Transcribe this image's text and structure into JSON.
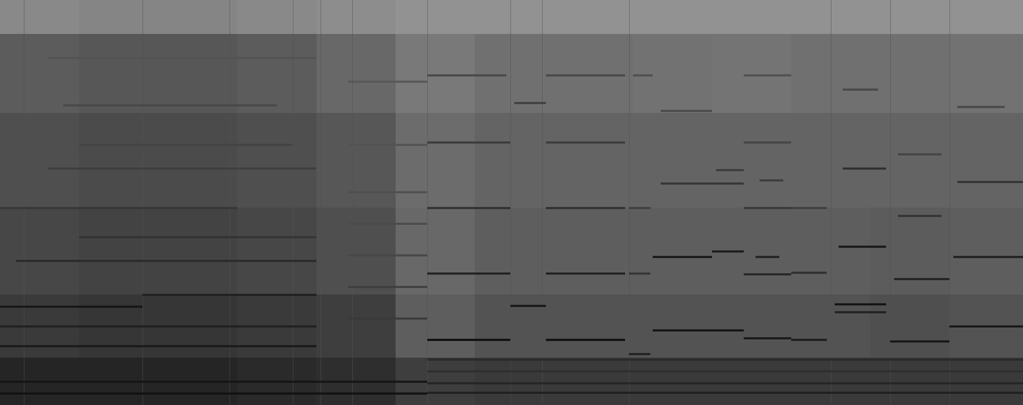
{
  "chart_data": {
    "type": "spectrogram",
    "tick_labels": false,
    "xlim": [
      0,
      1293
    ],
    "ylim": [
      0,
      513
    ],
    "x_edges": [
      0,
      100,
      200,
      300,
      400,
      500,
      600,
      700,
      800,
      900,
      1000,
      1100,
      1200,
      1293
    ],
    "y_edges": [
      0,
      60,
      140,
      250,
      370,
      470,
      513
    ],
    "color_range": [
      0,
      1
    ],
    "cells": [
      [
        0.82,
        0.82,
        0.82,
        0.8,
        0.78,
        0.7,
        0.72,
        0.72,
        0.72,
        0.72,
        0.72,
        0.72,
        0.72
      ],
      [
        0.72,
        0.74,
        0.74,
        0.72,
        0.7,
        0.55,
        0.6,
        0.6,
        0.6,
        0.6,
        0.6,
        0.62,
        0.6
      ],
      [
        0.66,
        0.68,
        0.68,
        0.66,
        0.62,
        0.5,
        0.55,
        0.55,
        0.55,
        0.55,
        0.55,
        0.56,
        0.55
      ],
      [
        0.62,
        0.64,
        0.64,
        0.62,
        0.58,
        0.48,
        0.52,
        0.52,
        0.52,
        0.52,
        0.52,
        0.52,
        0.52
      ],
      [
        0.56,
        0.58,
        0.58,
        0.56,
        0.5,
        0.42,
        0.46,
        0.46,
        0.45,
        0.44,
        0.46,
        0.46,
        0.45
      ],
      [
        0.34,
        0.36,
        0.36,
        0.34,
        0.32,
        0.3,
        0.3,
        0.3,
        0.3,
        0.3,
        0.3,
        0.3,
        0.3
      ]
    ],
    "tracks": [
      {
        "x1": 540,
        "x2": 645,
        "y": 83,
        "v": 0.95
      },
      {
        "x1": 690,
        "x2": 790,
        "y": 83,
        "v": 0.95
      },
      {
        "x1": 540,
        "x2": 645,
        "y": 167,
        "v": 0.85
      },
      {
        "x1": 690,
        "x2": 790,
        "y": 167,
        "v": 0.85
      },
      {
        "x1": 540,
        "x2": 645,
        "y": 250,
        "v": 0.78
      },
      {
        "x1": 690,
        "x2": 790,
        "y": 250,
        "v": 0.78
      },
      {
        "x1": 540,
        "x2": 645,
        "y": 333,
        "v": 0.72
      },
      {
        "x1": 690,
        "x2": 790,
        "y": 333,
        "v": 0.72
      },
      {
        "x1": 540,
        "x2": 640,
        "y": 418,
        "v": 0.66
      },
      {
        "x1": 690,
        "x2": 790,
        "y": 418,
        "v": 0.66
      },
      {
        "x1": 645,
        "x2": 690,
        "y": 126,
        "v": 0.9
      },
      {
        "x1": 650,
        "x2": 690,
        "y": 383,
        "v": 0.7
      },
      {
        "x1": 795,
        "x2": 822,
        "y": 65,
        "v": 0.85
      },
      {
        "x1": 795,
        "x2": 822,
        "y": 167,
        "v": 0.75
      },
      {
        "x1": 795,
        "x2": 822,
        "y": 250,
        "v": 0.7
      },
      {
        "x1": 800,
        "x2": 825,
        "y": 418,
        "v": 0.62
      },
      {
        "x1": 825,
        "x2": 940,
        "y": 95,
        "v": 0.92
      },
      {
        "x1": 825,
        "x2": 900,
        "y": 188,
        "v": 0.9
      },
      {
        "x1": 900,
        "x2": 940,
        "y": 195,
        "v": 0.88
      },
      {
        "x1": 835,
        "x2": 940,
        "y": 281,
        "v": 0.75
      },
      {
        "x1": 835,
        "x2": 900,
        "y": 373,
        "v": 0.65
      },
      {
        "x1": 905,
        "x2": 940,
        "y": 298,
        "v": 0.72
      },
      {
        "x1": 940,
        "x2": 1000,
        "y": 85,
        "v": 0.9
      },
      {
        "x1": 940,
        "x2": 1000,
        "y": 166,
        "v": 0.82
      },
      {
        "x1": 940,
        "x2": 1000,
        "y": 250,
        "v": 0.74
      },
      {
        "x1": 940,
        "x2": 1000,
        "y": 333,
        "v": 0.68
      },
      {
        "x1": 940,
        "x2": 1000,
        "y": 418,
        "v": 0.62
      },
      {
        "x1": 955,
        "x2": 985,
        "y": 188,
        "v": 0.85
      },
      {
        "x1": 960,
        "x2": 990,
        "y": 285,
        "v": 0.72
      },
      {
        "x1": 1000,
        "x2": 1045,
        "y": 83,
        "v": 0.88
      },
      {
        "x1": 1000,
        "x2": 1045,
        "y": 168,
        "v": 0.78
      },
      {
        "x1": 1000,
        "x2": 1045,
        "y": 250,
        "v": 0.7
      },
      {
        "x1": 1055,
        "x2": 1120,
        "y": 128,
        "v": 0.92
      },
      {
        "x1": 1055,
        "x2": 1120,
        "y": 118,
        "v": 0.85
      },
      {
        "x1": 1060,
        "x2": 1120,
        "y": 201,
        "v": 0.9
      },
      {
        "x1": 1065,
        "x2": 1120,
        "y": 300,
        "v": 0.78
      },
      {
        "x1": 1065,
        "x2": 1110,
        "y": 400,
        "v": 0.66
      },
      {
        "x1": 1125,
        "x2": 1200,
        "y": 81,
        "v": 0.9
      },
      {
        "x1": 1130,
        "x2": 1200,
        "y": 160,
        "v": 0.85
      },
      {
        "x1": 1135,
        "x2": 1190,
        "y": 240,
        "v": 0.76
      },
      {
        "x1": 1135,
        "x2": 1190,
        "y": 318,
        "v": 0.68
      },
      {
        "x1": 1200,
        "x2": 1293,
        "y": 100,
        "v": 0.9
      },
      {
        "x1": 1205,
        "x2": 1293,
        "y": 188,
        "v": 0.86
      },
      {
        "x1": 1210,
        "x2": 1293,
        "y": 283,
        "v": 0.76
      },
      {
        "x1": 1210,
        "x2": 1270,
        "y": 378,
        "v": 0.66
      },
      {
        "x1": 540,
        "x2": 1293,
        "y": 58,
        "v": 0.8
      },
      {
        "x1": 540,
        "x2": 1293,
        "y": 43,
        "v": 0.78
      },
      {
        "x1": 540,
        "x2": 1293,
        "y": 28,
        "v": 0.82
      },
      {
        "x1": 540,
        "x2": 1293,
        "y": 16,
        "v": 0.85
      },
      {
        "x1": 0,
        "x2": 180,
        "y": 125,
        "v": 0.9
      },
      {
        "x1": 180,
        "x2": 400,
        "y": 140,
        "v": 0.85
      },
      {
        "x1": 0,
        "x2": 400,
        "y": 100,
        "v": 0.85
      },
      {
        "x1": 0,
        "x2": 400,
        "y": 75,
        "v": 0.88
      },
      {
        "x1": 20,
        "x2": 400,
        "y": 183,
        "v": 0.8
      },
      {
        "x1": 100,
        "x2": 400,
        "y": 213,
        "v": 0.76
      },
      {
        "x1": 0,
        "x2": 300,
        "y": 250,
        "v": 0.74
      },
      {
        "x1": 60,
        "x2": 400,
        "y": 300,
        "v": 0.7
      },
      {
        "x1": 100,
        "x2": 370,
        "y": 330,
        "v": 0.68
      },
      {
        "x1": 80,
        "x2": 350,
        "y": 380,
        "v": 0.66
      },
      {
        "x1": 60,
        "x2": 400,
        "y": 440,
        "v": 0.6
      },
      {
        "x1": 440,
        "x2": 540,
        "y": 110,
        "v": 0.72
      },
      {
        "x1": 440,
        "x2": 540,
        "y": 150,
        "v": 0.7
      },
      {
        "x1": 440,
        "x2": 540,
        "y": 190,
        "v": 0.66
      },
      {
        "x1": 440,
        "x2": 540,
        "y": 230,
        "v": 0.64
      },
      {
        "x1": 440,
        "x2": 540,
        "y": 270,
        "v": 0.62
      },
      {
        "x1": 440,
        "x2": 540,
        "y": 330,
        "v": 0.6
      },
      {
        "x1": 440,
        "x2": 540,
        "y": 410,
        "v": 0.58
      },
      {
        "x1": 0,
        "x2": 540,
        "y": 30,
        "v": 0.9
      },
      {
        "x1": 0,
        "x2": 540,
        "y": 15,
        "v": 0.92
      }
    ],
    "onsets": [
      {
        "x": 30,
        "v": 0.6
      },
      {
        "x": 180,
        "v": 0.6
      },
      {
        "x": 290,
        "v": 0.6
      },
      {
        "x": 370,
        "v": 0.6
      },
      {
        "x": 405,
        "v": 0.6
      },
      {
        "x": 445,
        "v": 0.6
      },
      {
        "x": 540,
        "v": 0.6
      },
      {
        "x": 645,
        "v": 0.6
      },
      {
        "x": 685,
        "v": 0.6
      },
      {
        "x": 795,
        "v": 0.6
      },
      {
        "x": 1050,
        "v": 0.6
      },
      {
        "x": 1125,
        "v": 0.6
      },
      {
        "x": 1200,
        "v": 0.6
      }
    ]
  }
}
